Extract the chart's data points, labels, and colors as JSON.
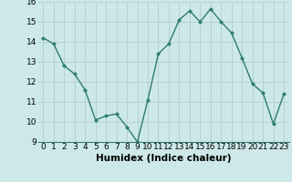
{
  "x": [
    0,
    1,
    2,
    3,
    4,
    5,
    6,
    7,
    8,
    9,
    10,
    11,
    12,
    13,
    14,
    15,
    16,
    17,
    18,
    19,
    20,
    21,
    22,
    23
  ],
  "y": [
    14.2,
    13.9,
    12.8,
    12.4,
    11.6,
    10.1,
    10.3,
    10.4,
    9.75,
    9.0,
    11.1,
    13.4,
    13.9,
    15.1,
    15.55,
    15.0,
    15.65,
    15.0,
    14.45,
    13.2,
    11.9,
    11.45,
    9.9,
    11.4
  ],
  "line_color": "#2e7d6e",
  "marker": "D",
  "marker_size": 2.0,
  "bg_color": "#cde8e8",
  "grid_color": "#b8d0d0",
  "xlabel": "Humidex (Indice chaleur)",
  "xlabel_fontsize": 7.5,
  "tick_fontsize": 6.5,
  "xlim": [
    -0.5,
    23.5
  ],
  "ylim": [
    9,
    16
  ],
  "yticks": [
    9,
    10,
    11,
    12,
    13,
    14,
    15,
    16
  ],
  "xticks": [
    0,
    1,
    2,
    3,
    4,
    5,
    6,
    7,
    8,
    9,
    10,
    11,
    12,
    13,
    14,
    15,
    16,
    17,
    18,
    19,
    20,
    21,
    22,
    23
  ],
  "linewidth": 1.0
}
